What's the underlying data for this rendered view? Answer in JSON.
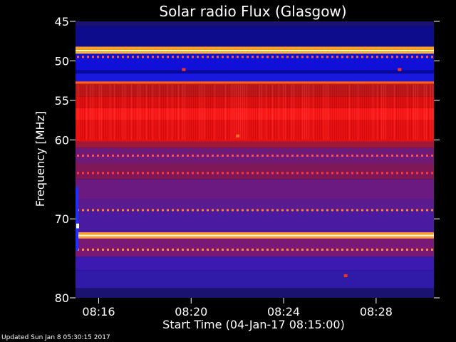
{
  "chart_data": {
    "type": "heatmap",
    "title": "Solar radio Flux (Glasgow)",
    "xlabel": "Start Time (04-Jan-17 08:15:00)",
    "ylabel": "Frequency [MHz]",
    "x_unit": "HH:MM",
    "xlim": [
      "08:15:00",
      "08:30:30"
    ],
    "ylim": [
      80,
      45
    ],
    "x_ticks": [
      {
        "time": "08:16",
        "label": "08:16"
      },
      {
        "time": "08:20",
        "label": "08:20"
      },
      {
        "time": "08:24",
        "label": "08:24"
      },
      {
        "time": "08:28",
        "label": "08:28"
      }
    ],
    "y_ticks": [
      {
        "mhz": 45,
        "label": "45"
      },
      {
        "mhz": 50,
        "label": "50"
      },
      {
        "mhz": 55,
        "label": "55"
      },
      {
        "mhz": 60,
        "label": "60"
      },
      {
        "mhz": 70,
        "label": "70"
      },
      {
        "mhz": 80,
        "label": "80"
      }
    ],
    "frequency_bands": [
      {
        "from_mhz": 45.0,
        "to_mhz": 45.6,
        "color": "#1a1470"
      },
      {
        "from_mhz": 45.6,
        "to_mhz": 48.2,
        "color": "#0c0c8c"
      },
      {
        "from_mhz": 48.2,
        "to_mhz": 48.6,
        "color": "#ffa020"
      },
      {
        "from_mhz": 48.6,
        "to_mhz": 48.8,
        "color": "#ffffb0"
      },
      {
        "from_mhz": 48.8,
        "to_mhz": 49.1,
        "color": "#ffb040"
      },
      {
        "from_mhz": 49.1,
        "to_mhz": 51.2,
        "color": "#1010d8"
      },
      {
        "from_mhz": 51.2,
        "to_mhz": 51.6,
        "color": "#0808a0"
      },
      {
        "from_mhz": 51.6,
        "to_mhz": 52.6,
        "color": "#1818e0"
      },
      {
        "from_mhz": 52.6,
        "to_mhz": 52.9,
        "color": "#ff6020"
      },
      {
        "from_mhz": 52.9,
        "to_mhz": 54.5,
        "color": "#c01818"
      },
      {
        "from_mhz": 54.5,
        "to_mhz": 56.0,
        "color": "#e01010"
      },
      {
        "from_mhz": 56.0,
        "to_mhz": 57.5,
        "color": "#ff1a1a"
      },
      {
        "from_mhz": 57.5,
        "to_mhz": 60.2,
        "color": "#e81010"
      },
      {
        "from_mhz": 60.2,
        "to_mhz": 61.0,
        "color": "#a01838"
      },
      {
        "from_mhz": 61.0,
        "to_mhz": 63.0,
        "color": "#701a78"
      },
      {
        "from_mhz": 63.0,
        "to_mhz": 65.0,
        "color": "#801858"
      },
      {
        "from_mhz": 65.0,
        "to_mhz": 67.5,
        "color": "#6a1a80"
      },
      {
        "from_mhz": 67.5,
        "to_mhz": 69.0,
        "color": "#5a1a90"
      },
      {
        "from_mhz": 69.0,
        "to_mhz": 71.7,
        "color": "#4a1aa0"
      },
      {
        "from_mhz": 71.7,
        "to_mhz": 72.0,
        "color": "#ff9a30"
      },
      {
        "from_mhz": 72.0,
        "to_mhz": 72.2,
        "color": "#ffffc0"
      },
      {
        "from_mhz": 72.2,
        "to_mhz": 72.5,
        "color": "#ffa040"
      },
      {
        "from_mhz": 72.5,
        "to_mhz": 74.8,
        "color": "#7a1878"
      },
      {
        "from_mhz": 74.8,
        "to_mhz": 76.5,
        "color": "#3a1ab0"
      },
      {
        "from_mhz": 76.5,
        "to_mhz": 78.8,
        "color": "#301aa8"
      },
      {
        "from_mhz": 78.8,
        "to_mhz": 80.0,
        "color": "#1a1470"
      }
    ],
    "dotted_lines_mhz": [
      {
        "mhz": 49.5,
        "color": "#ff6030"
      },
      {
        "mhz": 62.0,
        "color": "#ff5050"
      },
      {
        "mhz": 64.2,
        "color": "#ff3838"
      },
      {
        "mhz": 68.9,
        "color": "#ff8030"
      },
      {
        "mhz": 73.9,
        "color": "#ff9030"
      }
    ],
    "spots": [
      {
        "time": "08:19:40",
        "mhz": 51.1,
        "color": "#ff3020"
      },
      {
        "time": "08:29:00",
        "mhz": 51.1,
        "color": "#ff3020"
      },
      {
        "time": "08:22:00",
        "mhz": 59.5,
        "color": "#ff7020"
      },
      {
        "time": "08:26:40",
        "mhz": 77.2,
        "color": "#ff3020"
      }
    ]
  },
  "footer": "Updated Sun Jan  8 05:30:15 2017"
}
